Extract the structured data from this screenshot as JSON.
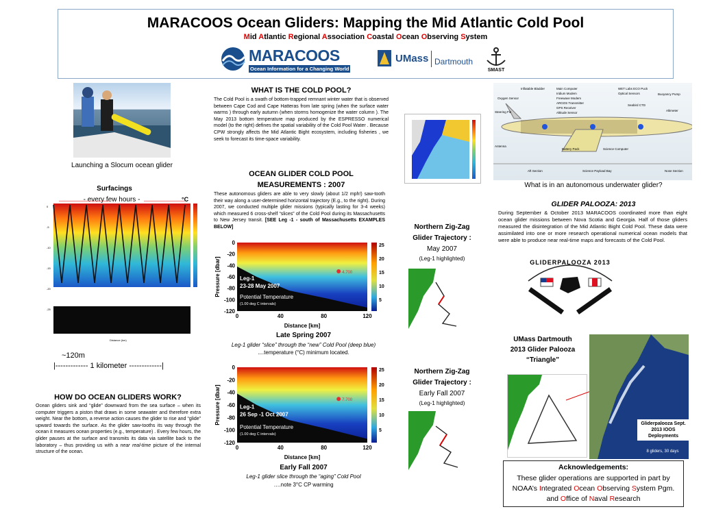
{
  "header": {
    "title": "MARACOOS Ocean Gliders: Mapping the Mid Atlantic Cold Pool",
    "subtitle_parts": [
      {
        "t": "M",
        "r": true
      },
      {
        "t": "id ",
        "r": false
      },
      {
        "t": "A",
        "r": true
      },
      {
        "t": "tlantic ",
        "r": false
      },
      {
        "t": "R",
        "r": true
      },
      {
        "t": "egional ",
        "r": false
      },
      {
        "t": "A",
        "r": true
      },
      {
        "t": "ssociation ",
        "r": false
      },
      {
        "t": "C",
        "r": true
      },
      {
        "t": "oastal ",
        "r": false
      },
      {
        "t": "O",
        "r": true
      },
      {
        "t": "cean ",
        "r": false
      },
      {
        "t": "O",
        "r": true
      },
      {
        "t": "bserving ",
        "r": false
      },
      {
        "t": "S",
        "r": true
      },
      {
        "t": "ystem",
        "r": false
      }
    ],
    "logos": {
      "maracoos": "MARACOOS",
      "maracoos_tag": "Ocean Information for a Changing World",
      "umass": "UMass",
      "dartmouth": "Dartmouth",
      "smast": "SMAST"
    }
  },
  "left": {
    "photo_caption": "Launching a Slocum ocean glider",
    "surfacings_label": "Surfacings",
    "surfacings_sub": "- every few hours -",
    "unit_c": "°C",
    "depth_label": "~120m",
    "km_label": "|------------- 1 kilometer -------------|",
    "how_title": "HOW DO OCEAN GLIDERS WORK?",
    "how_text": "Ocean gliders sink and “glide” downward from the sea surface – when its computer triggers a piston that draws in some seawater and therefore extra weight. Near the bottom, a reverse action causes the glider to rise and “glide” upward towards the surface. As the glider saw-tooths its way through the ocean it measures ocean properties (e.g., temperature) . Every few hours, the glider pauses at the surface and transmits its data via satellite back to the laboratory – thus providing us with a",
    "how_text_em": "near real-time",
    "how_text_end": "picture of the internal structure of the ocean."
  },
  "middle": {
    "cold_pool_title": "WHAT IS THE COLD POOL?",
    "cold_pool_text": "The Cold Pool is a swath of bottom-trapped remnant winter water that is observed between Cape Cod and Cape Hatteras from late spring (when the surface water warms ) through early autumn (when storms homogenize the water column ). The May 2013 bottom temperature map produced by the ESPRESSO numerical model (to the right) defines the spatial variability of the Cold Pool Water . Because CPW strongly affects the Mid Atlantic Bight ecosystem, including fisheries , we seek to forecast its time-space variability.",
    "meas_title_1": "OCEAN GLIDER COLD POOL",
    "meas_title_2": "MEASUREMENTS : 2007",
    "meas_text": "These autonomous gliders are able to very slowly (about 1/2 mph!) saw-tooth their way along a user-determined horizontal trajectory (E.g., to the right). During 2007, we conducted multiple glider missions (typically lasting for 3-4 weeks) which measured 6 cross-shelf “slices” of the Cold Pool during its Massachusetts to New Jersey transit.",
    "meas_see": "[SEE Leg -1 - south of Massachusetts EXAMPLES BELOW]",
    "spring_title": "Late Spring 2007",
    "spring_cap_1": "Leg-1 glider “slice” through the “new” Cold Pool (deep blue)",
    "spring_cap_2": "....temperature (°C) minimum located.",
    "fall_title": "Early Fall 2007",
    "fall_cap_1": "Leg-1 glider slice through the “aging” Cold Pool",
    "fall_cap_2": "….note 3°C CP warming"
  },
  "sections": [
    {
      "leg": "Leg-1",
      "dates": "23-28 May 2007",
      "pt": "Potential Temperature",
      "pt_sub": "(1.00 deg C intervals)",
      "marker": "4.700"
    },
    {
      "leg": "Leg-1",
      "dates": "26 Sep -1 Oct 2007",
      "pt": "Potential Temperature",
      "pt_sub": "(1.00 deg C intervals)",
      "marker": "7.700"
    }
  ],
  "section_axes": {
    "ylabel": "Pressure [dbar]",
    "xlabel": "Distance [km]",
    "yticks": [
      "0",
      "-20",
      "-40",
      "-60",
      "-80",
      "-100",
      "-120"
    ],
    "xticks": [
      "0",
      "40",
      "80",
      "120"
    ],
    "cticks": [
      "25",
      "20",
      "15",
      "10",
      "5"
    ]
  },
  "trajectory": {
    "n1": "Northern Zig-Zag",
    "n2": "Glider Trajectory :",
    "may": "May 2007",
    "fall": "Early Fall 2007",
    "leg_note": "(Leg-1 highlighted)"
  },
  "right": {
    "glider_caption": "What is in an autonomous underwater glider?",
    "glider_parts": [
      "Inflatable Bladder",
      "Oxygen Sensor",
      "Main Computer",
      "Iridium Modem",
      "Freewave Modem",
      "ARGOS Transmitter",
      "GPS Receiver",
      "Altitude Sensor",
      "WET Labs ECO Puck",
      "Optical Sensors",
      "Buoyancy Pump",
      "Steering Fin",
      "Seabird CTD",
      "Altimeter",
      "Antenna",
      "Battery Pack",
      "Science Computer",
      "Aft Section",
      "Science Payload Bay",
      "Nose Section"
    ],
    "palooza_title": "GLIDER PALOOZA: 2013",
    "palooza_text": "During September & October 2013 MARACOOS coordinated more than eight ocean glider missions between Nova Scotia and Georgia. Half of those gliders measured the disintegration of the Mid Atlantic Bight Cold Pool. These data were assimilated into one or more research operational numerical ocean models that were able to produce near real-time maps and forecasts of the Cold Pool.",
    "palooza_logo": "GLIDERPALOOZA 2013",
    "triangle_1": "UMass Dartmouth",
    "triangle_2": "2013 Glider Palooza",
    "triangle_3": "“Triangle”",
    "map_box": "Gliderpalooza Sept. 2013 IOOS Deployments",
    "map_box_sub": "8 gliders, 30 days",
    "ack_title": "Acknowledgements:",
    "ack_1": "These glider operations are supported in part by",
    "ack_2": "NOAA’s Integrated Ocean Observing System Pgm.",
    "ack_3": "and Office of Naval Research"
  },
  "colors": {
    "accent_red": "#dd0000",
    "maracoos_blue": "#1a4e8c",
    "dartmouth_blue": "#1f4f8a",
    "border": "#8aa6c8"
  }
}
